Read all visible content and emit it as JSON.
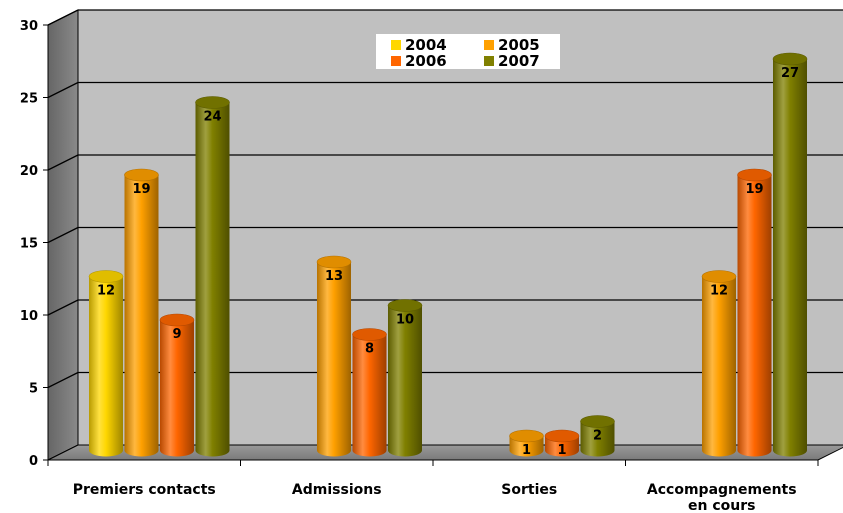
{
  "chart_data": {
    "type": "bar",
    "categories": [
      "Premiers contacts",
      "Admissions",
      "Sorties",
      "Accompagnements en cours"
    ],
    "category_lines": [
      [
        "Premiers contacts"
      ],
      [
        "Admissions"
      ],
      [
        "Sorties"
      ],
      [
        "Accompagnements",
        "en cours"
      ]
    ],
    "series": [
      {
        "name": "2004",
        "color": "#FFD700",
        "values": [
          12,
          null,
          null,
          null
        ]
      },
      {
        "name": "2005",
        "color": "#FFA000",
        "values": [
          19,
          13,
          1,
          12
        ]
      },
      {
        "name": "2006",
        "color": "#FF6600",
        "values": [
          9,
          8,
          1,
          19
        ]
      },
      {
        "name": "2007",
        "color": "#808000",
        "values": [
          24,
          10,
          2,
          27
        ]
      }
    ],
    "ylim": [
      0,
      30
    ],
    "yticks": [
      "0",
      "5",
      "10",
      "15",
      "20",
      "25",
      "30"
    ],
    "grid": true,
    "legend_position": "top-center",
    "style": "3d-cylinder"
  }
}
